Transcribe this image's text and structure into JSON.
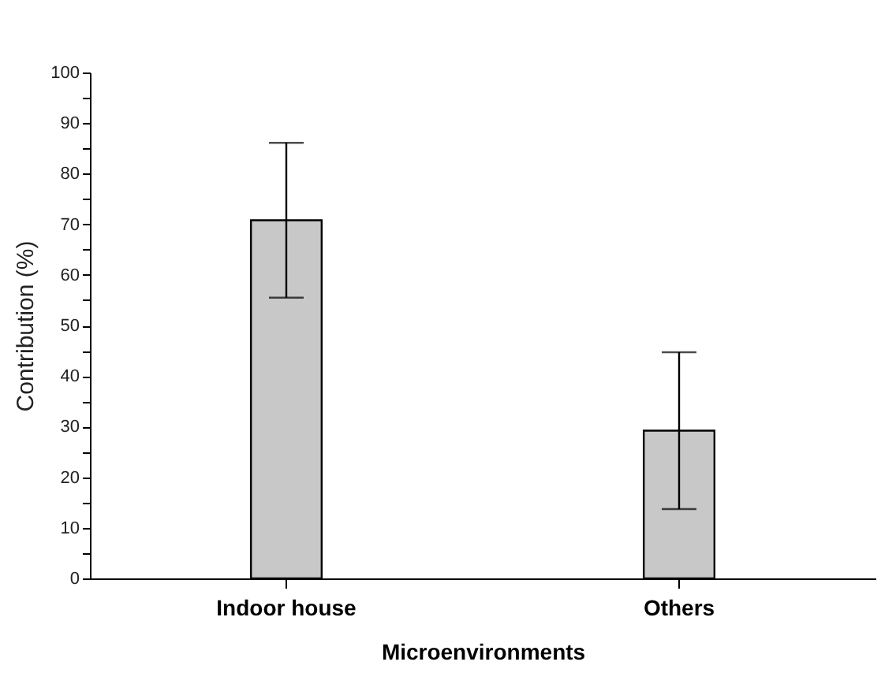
{
  "chart_data": {
    "type": "bar",
    "xlabel": "Microenvironments",
    "ylabel": "Contribution (%)",
    "categories": [
      "Indoor house",
      "Others"
    ],
    "values": [
      70.8,
      29.2
    ],
    "errors": [
      15.3,
      15.5
    ],
    "color": "#c8c8c8",
    "ylim": [
      0,
      100
    ],
    "yticks": [
      0,
      {
        "value": 5,
        "label": null
      },
      10,
      {
        "value": 15,
        "label": null
      },
      20,
      {
        "value": 25,
        "label": null
      },
      30,
      {
        "value": 35,
        "label": null
      },
      40,
      {
        "value": 45,
        "label": null
      },
      50,
      {
        "value": 55,
        "label": null
      },
      60,
      {
        "value": 65,
        "label": null
      },
      70,
      {
        "value": 75,
        "label": null
      },
      80,
      {
        "value": 85,
        "label": null
      },
      90,
      {
        "value": 95,
        "label": null
      },
      100
    ],
    "grid": false
  }
}
